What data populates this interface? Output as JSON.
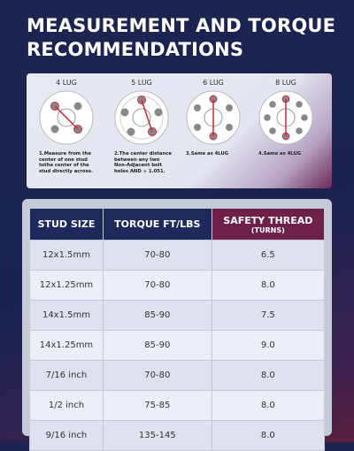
{
  "title": {
    "line1": "MEASUREMENT AND TORQUE",
    "line2": "RECOMMENDATIONS"
  },
  "lugs": [
    {
      "label": "4 LUG",
      "caption": "1.Measure from the center of one stud tothe center of the stud directly across."
    },
    {
      "label": "5 LUG",
      "caption": "2.The center distance between any two Non-Adjacent bolt holes AND ÷ 1.051."
    },
    {
      "label": "6 LUG",
      "caption": "3.Same as 4LUG"
    },
    {
      "label": "8 LUG",
      "caption": "4.Same as 4LUG"
    }
  ],
  "table": {
    "headers": [
      "STUD SIZE",
      "TORQUE FT/LBS",
      {
        "title": "SAFETY THREAD",
        "unit": "(TURNS)"
      }
    ],
    "rows": [
      [
        "12x1.5mm",
        "70-80",
        "6.5"
      ],
      [
        "12x1.25mm",
        "70-80",
        "8.0"
      ],
      [
        "14x1.5mm",
        "85-90",
        "7.5"
      ],
      [
        "14x1.25mm",
        "85-90",
        "9.0"
      ],
      [
        "7/16 inch",
        "70-80",
        "8.0"
      ],
      [
        "1/2 inch",
        "75-85",
        "8.0"
      ],
      [
        "9/16 inch",
        "135-145",
        "8.0"
      ]
    ]
  }
}
